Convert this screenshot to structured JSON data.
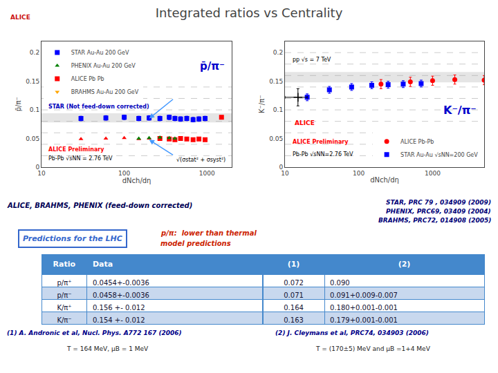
{
  "title": "Integrated ratios vs Centrality",
  "annotations": [
    {
      "text": "ALICE",
      "color": "#cc1111"
    },
    {
      "text": "ALICE, BRAHMS, PHENIX (feed-down corrected)",
      "color": "#000055"
    },
    {
      "text": "STAR, PRC 79 , 034909 (2009)",
      "color": "#000077"
    },
    {
      "text": "PHENIX, PRC69, 03409 (2004)",
      "color": "#000077"
    },
    {
      "text": "BRAHMS, PRC72, 014908 (2005)",
      "color": "#000077"
    },
    {
      "text": "Predictions for the LHC",
      "color": "#3366cc"
    },
    {
      "text": "p/π:  lower than thermal",
      "color": "#cc2200"
    },
    {
      "text": "model predictions",
      "color": "#cc2200"
    },
    {
      "text": "(1) A. Andronic et al, Nucl. Phys. A772 167 (2006)",
      "color": "#000088"
    },
    {
      "text": "(2) J. Cleymans et al, PRC74, 034903 (2006)",
      "color": "#000088"
    },
    {
      "text": "T = 164 MeV, μB = 1 MeV",
      "color": "#222222"
    },
    {
      "text": "T = (170±5) MeV and μB =1+4 MeV",
      "color": "#222222"
    }
  ],
  "table": {
    "headers": [
      "Ratio",
      "Data",
      "(1)",
      "(2)"
    ],
    "rows": [
      [
        "p/π⁺",
        "0.0454+-0.0036",
        "0.072",
        "0.090"
      ],
      [
        "p/π⁻",
        "0.0458+-0.0036",
        "0.071",
        "0.091+0.009-0.007"
      ],
      [
        "K/π⁺",
        "0.156 +- 0.012",
        "0.164",
        "0.180+0.001-0.001"
      ],
      [
        "K/π⁻",
        "0.154 +- 0.012",
        "0.163",
        "0.179+0.001-0.001"
      ]
    ],
    "header_color": "#4488cc",
    "header_text_color": "#ffffff",
    "row_colors": [
      "#ffffff",
      "#c8d8ee"
    ],
    "line_color": "#4488cc",
    "text_color": "#111133"
  },
  "chart_data": [
    {
      "type": "scatter",
      "log": "x",
      "x_label": "dNch/dη",
      "y_label": "p̄/π⁻",
      "xlim": [
        10,
        2000
      ],
      "xticks": [
        10,
        100,
        1000
      ],
      "ylim": [
        0,
        0.22
      ],
      "yticks": [
        0,
        0.05,
        0.1,
        0.15,
        0.2
      ],
      "grid": false,
      "legend": "upper left",
      "series": [
        {
          "name": "STAR Au-Au 200 GeV",
          "color": "blue",
          "marker": "square",
          "x": [
            30,
            60,
            100,
            150,
            200,
            270,
            350,
            410,
            480,
            570,
            680,
            800,
            950
          ],
          "values": [
            0.085,
            0.086,
            0.087,
            0.085,
            0.086,
            0.085,
            0.087,
            0.085,
            0.084,
            0.085,
            0.083,
            0.084,
            0.085
          ],
          "errors": [
            0.004,
            0.004,
            0.004,
            0.004,
            0.004,
            0.004,
            0.004,
            0.004,
            0.004,
            0.004,
            0.004,
            0.004,
            0.004
          ]
        },
        {
          "color": "red",
          "marker": "triangle-up",
          "x": [
            30,
            60,
            100,
            150,
            200
          ],
          "values": [
            0.049,
            0.05,
            0.051,
            0.049,
            0.05
          ]
        },
        {
          "color": "red",
          "marker": "square",
          "x": [
            270,
            350,
            410,
            480,
            570,
            680,
            800,
            950
          ],
          "values": [
            0.05,
            0.049,
            0.048,
            0.05,
            0.049,
            0.048,
            0.049,
            0.048
          ]
        },
        {
          "name": "PHENIX Au-Au 200 GeV",
          "color": "green",
          "marker": "triangle-up",
          "x": [
            150,
            200,
            270,
            350,
            410
          ],
          "values": [
            0.05,
            0.051,
            0.052,
            0.051,
            0.05
          ]
        },
        {
          "name": "ALICE Pb Pb",
          "color": "red",
          "marker": "square",
          "x": [
            1500
          ],
          "values": [
            0.087
          ]
        },
        {
          "name": "BRAHMS Au-Au 200 GeV",
          "color": "orange",
          "marker": "triangle-down",
          "x": [],
          "values": []
        }
      ],
      "bands": [
        {
          "lo": 0.078,
          "hi": 0.094,
          "color": "lightgray"
        }
      ],
      "hlines": {
        "values": [
          0.02,
          0.04,
          0.06,
          0.08,
          0.1,
          0.12,
          0.14
        ],
        "color": "#aaaaaa",
        "line_style": "dashed"
      },
      "arrows": [
        {
          "from": [
            400,
            0.12
          ],
          "to": [
            200,
            0.085
          ],
          "color": "#4499ff"
        },
        {
          "from": [
            400,
            0.02
          ],
          "to": [
            200,
            0.048
          ],
          "color": "#4499ff"
        }
      ],
      "annotations": [
        {
          "text": "STAR (Not feed-down corrected)",
          "color": "#0000bb"
        },
        {
          "text": "p̄/π⁻",
          "color": "#0000cc"
        },
        {
          "text": "ALICE Preliminary",
          "color": "red"
        },
        {
          "text": "Pb-Pb √sNN = 2.76 TeV",
          "color": "black"
        },
        {
          "text": "√(σstat² + σsyst²)",
          "color": "black"
        }
      ]
    },
    {
      "type": "scatter",
      "log": "x",
      "x_label": "dNch/dη",
      "y_label": "K⁻/π⁻",
      "xlim": [
        10,
        5000
      ],
      "xticks": [
        10,
        100,
        1000
      ],
      "ylim": [
        0,
        0.22
      ],
      "yticks": [
        0,
        0.05,
        0.1,
        0.15,
        0.2
      ],
      "grid": false,
      "legend": "lower right",
      "series": [
        {
          "name": "ALICE Pb-Pb",
          "color": "red",
          "marker": "circle",
          "x": [
            200,
            500,
            1000,
            2000,
            5000
          ],
          "values": [
            0.145,
            0.149,
            0.151,
            0.153,
            0.152
          ],
          "errors": [
            0.008,
            0.008,
            0.008,
            0.008,
            0.008
          ]
        },
        {
          "name": "STAR Au-Au √sNN=200 GeV",
          "color": "blue",
          "marker": "square",
          "x": [
            20,
            40,
            80,
            150,
            250,
            400,
            700
          ],
          "values": [
            0.122,
            0.135,
            0.14,
            0.143,
            0.144,
            0.145,
            0.146
          ],
          "errors": [
            0.006,
            0.006,
            0.006,
            0.006,
            0.006,
            0.006,
            0.006
          ]
        },
        {
          "color": "black",
          "marker": "plus",
          "x": [
            15
          ],
          "values": [
            0.122
          ],
          "errors": [
            0.015
          ],
          "x_errors": [
            5
          ]
        }
      ],
      "bands": [
        {
          "lo": 0.148,
          "hi": 0.166,
          "color": "lightgray"
        }
      ],
      "hlines": {
        "values": [
          0.02,
          0.04,
          0.06,
          0.08,
          0.1,
          0.12,
          0.14,
          0.16,
          0.18,
          0.2
        ],
        "color": "#aaaaaa",
        "line_style": "dashed"
      },
      "annotations": [
        {
          "text": "K⁻/π⁻",
          "color": "#0000cc"
        },
        {
          "text": "ALICE",
          "color": "red"
        },
        {
          "text": "ALICE Preliminary",
          "color": "red"
        },
        {
          "text": "Pb-Pb √sNN=2.76 TeV",
          "color": "black"
        },
        {
          "text": "pp √s = 7 TeV",
          "color": "black"
        }
      ]
    }
  ]
}
